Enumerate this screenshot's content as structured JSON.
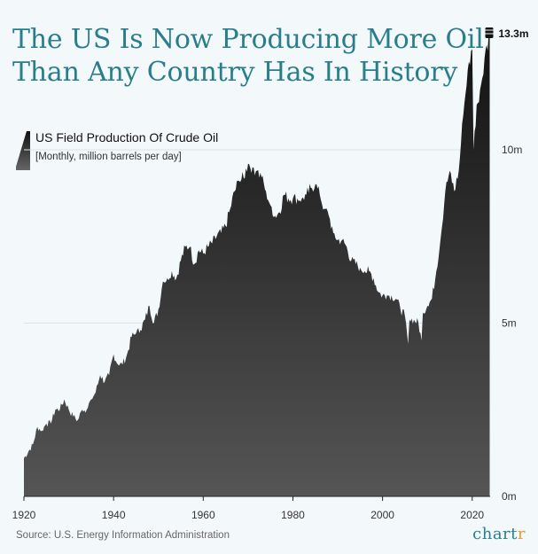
{
  "title_lines": [
    "The US Is Now Producing More Oil",
    "Than Any Country Has In History"
  ],
  "source": "Source: U.S. Energy Information Administration",
  "brand": {
    "main": "chart",
    "accent": "r"
  },
  "colors": {
    "title": "#2a7e8c",
    "area_top": "#111111",
    "area_bottom": "#555555",
    "background": "#f3f8fb"
  },
  "chart_data": {
    "type": "area",
    "title": "The US Is Now Producing More Oil Than Any Country Has In History",
    "series": [
      {
        "name": "US Field Production Of Crude Oil",
        "unit": "[Monthly, million barrels per day]",
        "x": [
          1920,
          1921,
          1922,
          1923,
          1924,
          1925,
          1926,
          1927,
          1928,
          1929,
          1930,
          1931,
          1932,
          1933,
          1934,
          1935,
          1936,
          1937,
          1938,
          1939,
          1940,
          1941,
          1942,
          1943,
          1944,
          1945,
          1946,
          1947,
          1948,
          1949,
          1950,
          1951,
          1952,
          1953,
          1954,
          1955,
          1956,
          1957,
          1958,
          1959,
          1960,
          1961,
          1962,
          1963,
          1964,
          1965,
          1966,
          1967,
          1968,
          1969,
          1970,
          1971,
          1972,
          1973,
          1974,
          1975,
          1976,
          1977,
          1978,
          1979,
          1980,
          1981,
          1982,
          1983,
          1984,
          1985,
          1986,
          1987,
          1988,
          1989,
          1990,
          1991,
          1992,
          1993,
          1994,
          1995,
          1996,
          1997,
          1998,
          1999,
          2000,
          2001,
          2002,
          2003,
          2004,
          2005,
          2005.7,
          2006,
          2007,
          2008,
          2008.7,
          2009,
          2010,
          2011,
          2012,
          2013,
          2014,
          2015,
          2016,
          2017,
          2018,
          2019,
          2020,
          2020.3,
          2021,
          2022,
          2023,
          2023.9
        ],
        "y": [
          1.1,
          1.3,
          1.5,
          2.0,
          1.9,
          2.1,
          2.1,
          2.5,
          2.5,
          2.8,
          2.5,
          2.3,
          2.2,
          2.5,
          2.5,
          2.8,
          3.0,
          3.5,
          3.3,
          3.5,
          4.1,
          3.8,
          3.8,
          4.1,
          4.6,
          4.7,
          4.8,
          5.1,
          5.5,
          5.0,
          5.4,
          6.2,
          6.3,
          6.5,
          6.3,
          6.8,
          7.2,
          7.2,
          6.7,
          7.1,
          7.0,
          7.2,
          7.3,
          7.5,
          7.6,
          7.8,
          8.3,
          8.8,
          9.1,
          9.2,
          9.6,
          9.5,
          9.4,
          9.2,
          8.8,
          8.4,
          8.1,
          8.2,
          8.7,
          8.6,
          8.6,
          8.6,
          8.6,
          8.7,
          8.9,
          9.0,
          8.7,
          8.3,
          8.1,
          7.6,
          7.4,
          7.4,
          7.2,
          6.8,
          6.7,
          6.6,
          6.5,
          6.5,
          6.3,
          5.9,
          5.8,
          5.8,
          5.8,
          5.7,
          5.4,
          5.2,
          4.4,
          5.1,
          5.1,
          5.0,
          4.5,
          5.3,
          5.5,
          5.7,
          6.5,
          7.5,
          8.8,
          9.4,
          8.8,
          9.4,
          11.0,
          12.3,
          12.9,
          10.0,
          11.3,
          11.9,
          12.9,
          13.3
        ]
      }
    ],
    "xticks": [
      1920,
      1940,
      1960,
      1980,
      2000,
      2020
    ],
    "xtick_labels": [
      "1920",
      "1940",
      "1960",
      "1980",
      "2000",
      "2020"
    ],
    "yticks": [
      0,
      5,
      10
    ],
    "ytick_labels": [
      "0m",
      "5m",
      "10m"
    ],
    "annotations": [
      {
        "x": 2023.9,
        "y": 13.3,
        "text": "13.3m"
      }
    ],
    "xlim": [
      1920,
      2024
    ],
    "ylim": [
      0,
      13.3
    ],
    "grid": true,
    "legend": "top-left"
  }
}
